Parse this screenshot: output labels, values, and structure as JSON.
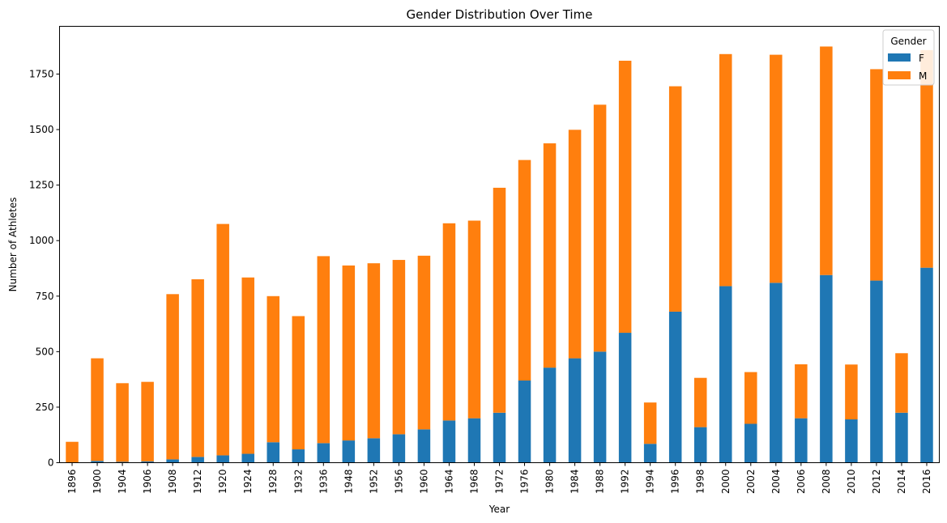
{
  "chart_data": {
    "type": "bar",
    "stacked": true,
    "title": "Gender Distribution Over Time",
    "xlabel": "Year",
    "ylabel": "Number of Athletes",
    "ylim": [
      0,
      1965
    ],
    "yticks": [
      0,
      250,
      500,
      750,
      1000,
      1250,
      1500,
      1750
    ],
    "grid": false,
    "legend": {
      "title": "Gender",
      "placement": "top-right"
    },
    "categories": [
      "1896",
      "1900",
      "1904",
      "1906",
      "1908",
      "1912",
      "1920",
      "1924",
      "1928",
      "1932",
      "1936",
      "1948",
      "1952",
      "1956",
      "1960",
      "1964",
      "1968",
      "1972",
      "1976",
      "1980",
      "1984",
      "1988",
      "1992",
      "1994",
      "1996",
      "1998",
      "2000",
      "2002",
      "2004",
      "2006",
      "2008",
      "2010",
      "2012",
      "2014",
      "2016"
    ],
    "series": [
      {
        "name": "F",
        "color": "#1f77b4",
        "values": [
          0,
          8,
          4,
          6,
          15,
          26,
          33,
          40,
          92,
          60,
          88,
          100,
          110,
          128,
          150,
          190,
          200,
          225,
          370,
          428,
          470,
          500,
          585,
          85,
          680,
          160,
          795,
          175,
          810,
          200,
          845,
          195,
          820,
          225,
          878
        ]
      },
      {
        "name": "M",
        "color": "#ff7f0e",
        "values": [
          94,
          462,
          354,
          358,
          744,
          800,
          1042,
          794,
          658,
          600,
          842,
          788,
          788,
          785,
          782,
          888,
          890,
          1013,
          993,
          1010,
          1029,
          1112,
          1225,
          186,
          1015,
          222,
          1045,
          233,
          1027,
          243,
          1029,
          247,
          952,
          268,
          980
        ]
      }
    ]
  }
}
